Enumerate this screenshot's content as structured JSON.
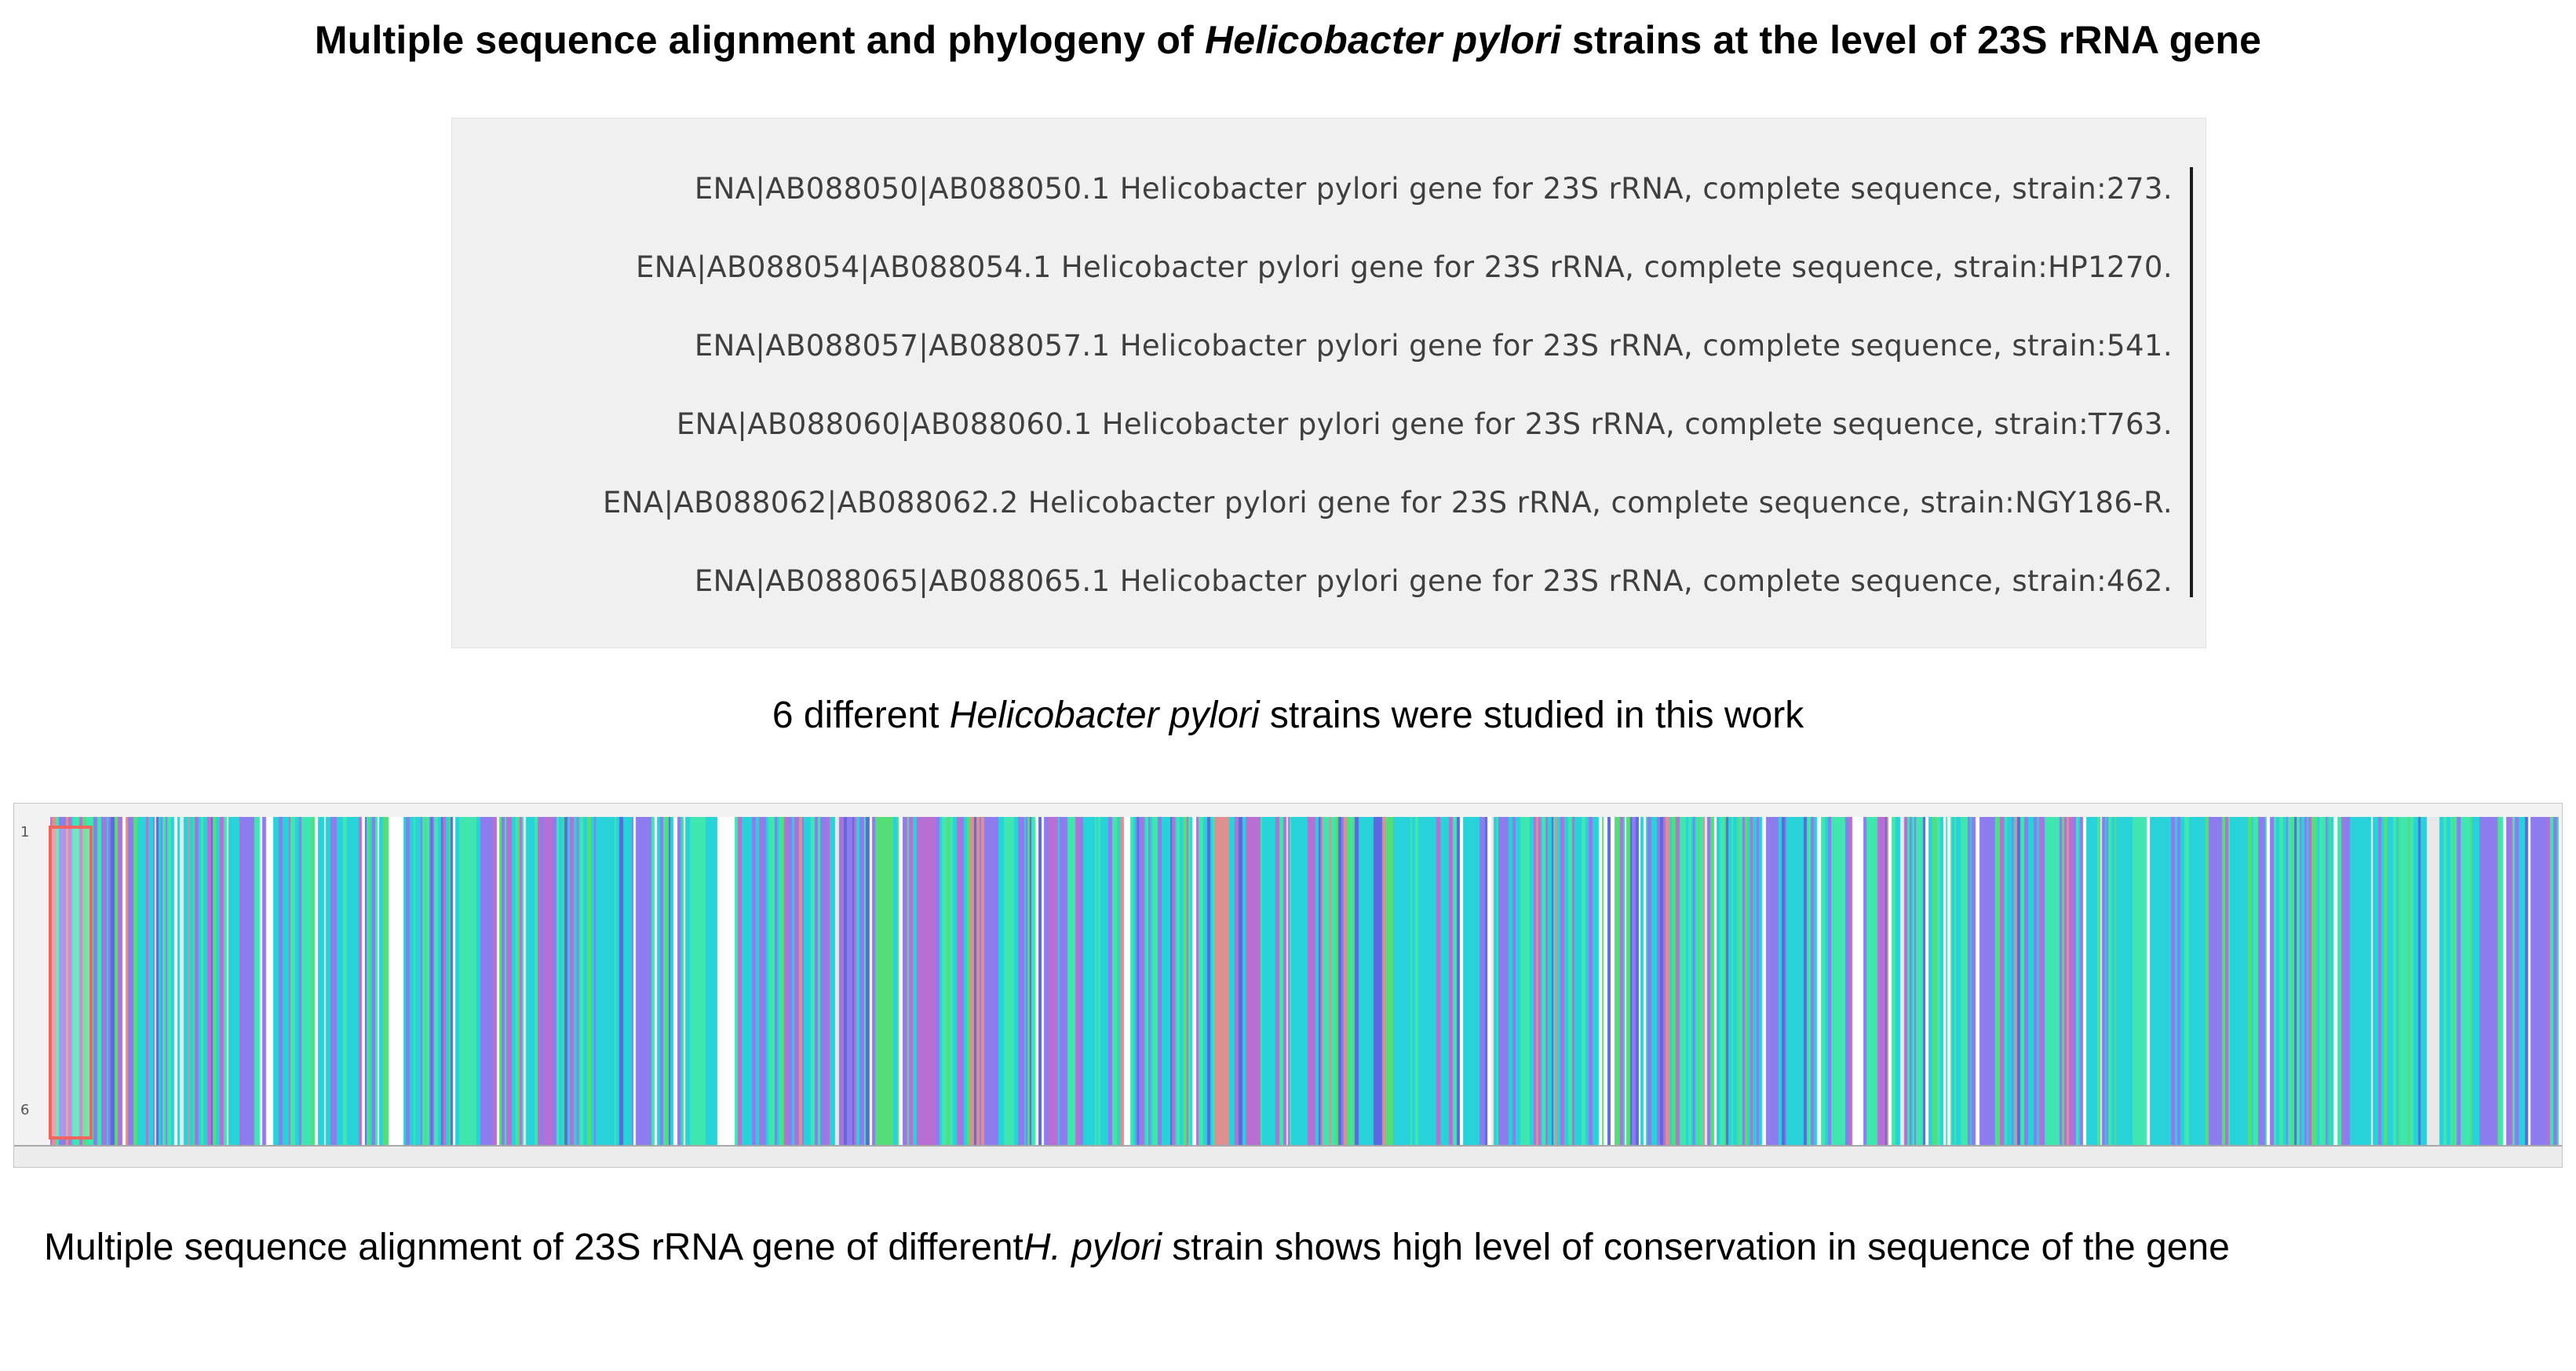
{
  "title": {
    "prefix": "Multiple sequence alignment and phylogeny of ",
    "italic": "Helicobacter pylori",
    "suffix": " strains at the level of 23S rRNA gene"
  },
  "sequences": [
    "ENA|AB088050|AB088050.1 Helicobacter pylori gene for 23S rRNA, complete sequence, strain:273.",
    "ENA|AB088054|AB088054.1 Helicobacter pylori gene for 23S rRNA, complete sequence, strain:HP1270.",
    "ENA|AB088057|AB088057.1 Helicobacter pylori gene for 23S rRNA, complete sequence, strain:541.",
    "ENA|AB088060|AB088060.1 Helicobacter pylori gene for 23S rRNA, complete sequence, strain:T763.",
    "ENA|AB088062|AB088062.2 Helicobacter pylori gene for 23S rRNA, complete sequence, strain:NGY186-R.",
    "ENA|AB088065|AB088065.1 Helicobacter pylori gene for 23S rRNA, complete sequence, strain:462."
  ],
  "caption_mid": {
    "prefix": "6 different ",
    "italic": "Helicobacter pylori",
    "suffix": " strains were studied in this work"
  },
  "alignment": {
    "row_label_first": "1",
    "row_label_last": "6",
    "row_count": 6,
    "background": "#f5f5f5",
    "selection_color": "#f2655d",
    "seed": 20230923,
    "palette": [
      {
        "name": "cyan",
        "color": "#27d3d8",
        "weight": 0.3
      },
      {
        "name": "turquoise",
        "color": "#3fe6b0",
        "weight": 0.2
      },
      {
        "name": "green",
        "color": "#55dd78",
        "weight": 0.08
      },
      {
        "name": "periwinkle",
        "color": "#8d7cee",
        "weight": 0.16
      },
      {
        "name": "orchid",
        "color": "#b76fd4",
        "weight": 0.1
      },
      {
        "name": "blue",
        "color": "#5a6ade",
        "weight": 0.05
      },
      {
        "name": "salmon",
        "color": "#de9090",
        "weight": 0.03
      },
      {
        "name": "white-gap",
        "color": "#ffffff",
        "weight": 0.06
      },
      {
        "name": "light-gray",
        "color": "#e8e8e8",
        "weight": 0.02
      }
    ]
  },
  "caption_bottom": {
    "prefix": "Multiple sequence alignment of 23S rRNA gene of different",
    "italic": "H. pylori",
    "suffix": " strain shows high level of conservation in sequence of the gene"
  }
}
